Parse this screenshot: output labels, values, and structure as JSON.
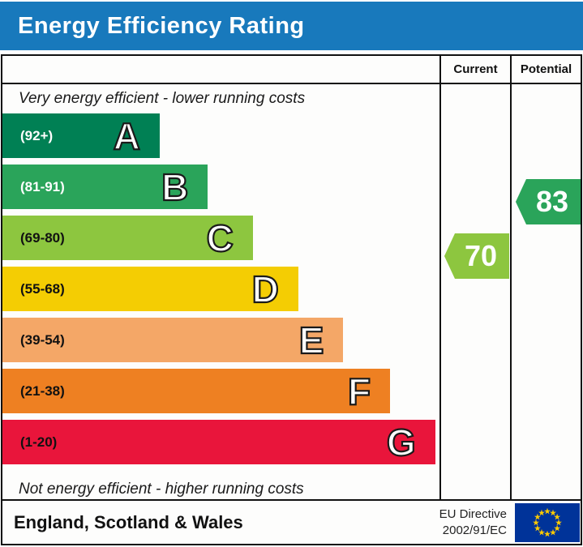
{
  "title": "Energy Efficiency Rating",
  "theme": {
    "header_bg": "#1879bc",
    "border": "#111111"
  },
  "columns": {
    "current": "Current",
    "potential": "Potential"
  },
  "chart_data": {
    "type": "bar",
    "title": "Energy Efficiency Rating",
    "top_note": "Very energy efficient - lower running costs",
    "bottom_note": "Not energy efficient - higher running costs",
    "bands": [
      {
        "letter": "A",
        "range": "(92+)",
        "color": "#008054",
        "range_text_color": "#ffffff",
        "width_pct": 36
      },
      {
        "letter": "B",
        "range": "(81-91)",
        "color": "#2aa45a",
        "range_text_color": "#ffffff",
        "width_pct": 47
      },
      {
        "letter": "C",
        "range": "(69-80)",
        "color": "#8dc63f",
        "range_text_color": "#111111",
        "width_pct": 57.3
      },
      {
        "letter": "D",
        "range": "(55-68)",
        "color": "#f4cd03",
        "range_text_color": "#111111",
        "width_pct": 67.7
      },
      {
        "letter": "E",
        "range": "(39-54)",
        "color": "#f4a767",
        "range_text_color": "#111111",
        "width_pct": 78
      },
      {
        "letter": "F",
        "range": "(21-38)",
        "color": "#ee8022",
        "range_text_color": "#111111",
        "width_pct": 88.7
      },
      {
        "letter": "G",
        "range": "(1-20)",
        "color": "#e9153b",
        "range_text_color": "#111111",
        "width_pct": 99
      }
    ],
    "current": {
      "value": "70",
      "band": "C",
      "color": "#8dc63f"
    },
    "potential": {
      "value": "83",
      "band": "B",
      "color": "#2aa45a"
    }
  },
  "footer": {
    "region": "England, Scotland & Wales",
    "directive_line1": "EU Directive",
    "directive_line2": "2002/91/EC",
    "eu_flag": {
      "blue": "#003399",
      "star_yellow": "#ffcc00"
    }
  }
}
